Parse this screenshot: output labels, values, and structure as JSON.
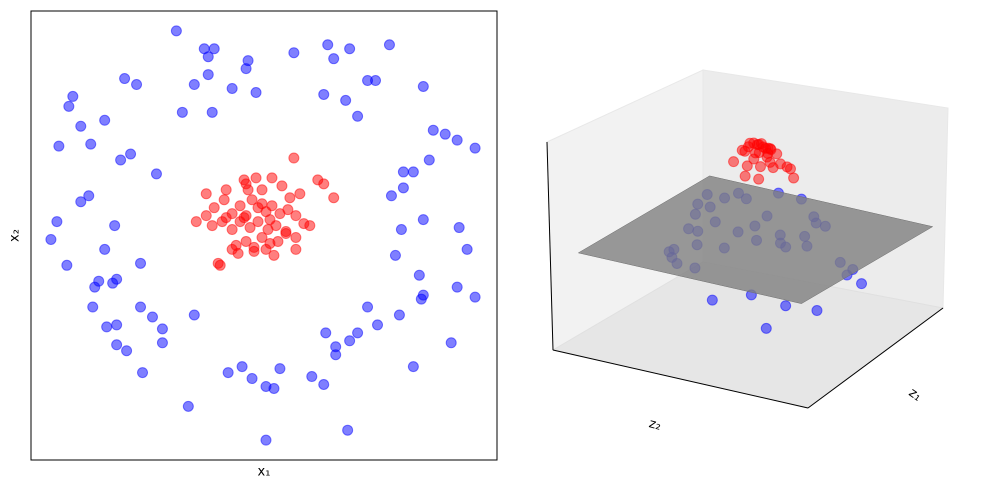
{
  "chart_data": [
    {
      "type": "scatter",
      "x_label": "x₁",
      "y_label": "x₂",
      "xlim": [
        -1.17,
        1.17
      ],
      "ylim": [
        -1.13,
        1.13
      ],
      "alpha": 0.5,
      "series": [
        {
          "color": "#0000ff",
          "x": [
            -0.44,
            -0.3,
            -0.25,
            -0.28,
            -0.08,
            -0.09,
            0.15,
            0.32,
            0.43,
            0.63,
            0.35,
            -0.7,
            -0.64,
            -0.35,
            -0.28,
            -0.16,
            -0.04,
            -0.96,
            -0.98,
            -0.92,
            -0.8,
            -0.41,
            -0.26,
            0.3,
            0.41,
            0.47,
            0.52,
            0.56,
            0.8,
            0.85,
            0.91,
            0.97,
            1.06,
            -1.03,
            -0.87,
            -0.72,
            -0.67,
            -0.54,
            0.83,
            0.7,
            0.75,
            0.7,
            0.64,
            -0.88,
            -0.92,
            -1.04,
            -1.07,
            -0.75,
            -0.8,
            -0.99,
            -0.62,
            0.69,
            0.8,
            0.98,
            1.02,
            0.66,
            0.78,
            -0.83,
            -0.85,
            -0.74,
            -0.76,
            0.97,
            1.06,
            0.8,
            0.79,
            -0.86,
            -0.62,
            -0.56,
            -0.51,
            -0.51,
            -0.79,
            -0.74,
            -0.74,
            -0.69,
            -0.61,
            -0.35,
            0.52,
            0.57,
            0.68,
            0.47,
            0.31,
            0.43,
            0.36,
            0.36,
            -0.18,
            -0.11,
            -0.06,
            0.01,
            0.05,
            0.08,
            0.24,
            0.3,
            0.75,
            0.94,
            -0.38,
            0.01,
            0.42
          ],
          "y": [
            1.03,
            0.94,
            0.94,
            0.9,
            0.88,
            0.84,
            0.92,
            0.96,
            0.94,
            0.96,
            0.89,
            0.79,
            0.76,
            0.76,
            0.81,
            0.74,
            0.72,
            0.7,
            0.65,
            0.55,
            0.58,
            0.62,
            0.62,
            0.71,
            0.68,
            0.6,
            0.78,
            0.78,
            0.75,
            0.53,
            0.51,
            0.48,
            0.44,
            0.45,
            0.46,
            0.38,
            0.41,
            0.31,
            0.38,
            0.32,
            0.32,
            0.24,
            0.2,
            0.2,
            0.17,
            0.07,
            -0.02,
            0.05,
            -0.07,
            -0.15,
            -0.14,
            0.03,
            0.08,
            0.04,
            -0.07,
            -0.1,
            -0.2,
            -0.23,
            -0.26,
            -0.22,
            -0.24,
            -0.26,
            -0.31,
            -0.3,
            -0.32,
            -0.36,
            -0.36,
            -0.41,
            -0.47,
            -0.54,
            -0.46,
            -0.45,
            -0.55,
            -0.58,
            -0.69,
            -0.4,
            -0.36,
            -0.45,
            -0.4,
            -0.49,
            -0.49,
            -0.53,
            -0.56,
            -0.6,
            -0.69,
            -0.66,
            -0.72,
            -0.76,
            -0.77,
            -0.67,
            -0.71,
            -0.75,
            -0.66,
            -0.54,
            -0.86,
            -1.03,
            -0.98
          ]
        },
        {
          "color": "#ff0000",
          "x": [
            0.15,
            0.27,
            0.3,
            0.35,
            -0.29,
            -0.19,
            -0.1,
            -0.09,
            -0.04,
            0.04,
            -0.01,
            0.09,
            0.13,
            0.18,
            -0.34,
            -0.29,
            -0.25,
            -0.2,
            -0.16,
            -0.12,
            -0.09,
            -0.06,
            -0.03,
            0.01,
            0.04,
            0.08,
            0.12,
            0.16,
            0.2,
            0.23,
            -0.26,
            -0.21,
            -0.16,
            -0.12,
            -0.07,
            -0.03,
            0.02,
            0.06,
            0.11,
            0.16,
            -0.14,
            -0.16,
            -0.09,
            -0.05,
            -0.01,
            0.03,
            0.07,
            0.11,
            -0.13,
            -0.05,
            0.01,
            0.05,
            0.16,
            -0.23,
            -0.22,
            -0.19,
            -0.1,
            -0.01,
            -0.08,
            0.03
          ],
          "y": [
            0.39,
            0.28,
            0.26,
            0.19,
            0.21,
            0.23,
            0.28,
            0.26,
            0.29,
            0.29,
            0.23,
            0.25,
            0.19,
            0.21,
            0.07,
            0.1,
            0.14,
            0.18,
            0.11,
            0.15,
            0.1,
            0.18,
            0.14,
            0.12,
            0.15,
            0.11,
            0.13,
            0.1,
            0.06,
            0.05,
            0.05,
            0.07,
            0.03,
            0.07,
            0.04,
            0.07,
            0.03,
            0.05,
            0.01,
            -0.01,
            -0.05,
            -0.07,
            -0.03,
            -0.06,
            -0.01,
            -0.04,
            -0.03,
            0.02,
            -0.09,
            -0.08,
            -0.07,
            -0.1,
            -0.07,
            -0.14,
            -0.15,
            0.09,
            0.09,
            0.16,
            0.23,
            0.08
          ]
        }
      ]
    },
    {
      "type": "scatter3d",
      "x_label": "z₁",
      "y_label": "z₂",
      "xlim": [
        -1.6,
        1.6
      ],
      "ylim": [
        -1.6,
        1.6
      ],
      "zlim": [
        0,
        1.05
      ],
      "alpha": 0.5,
      "surface": {
        "z": 0.5,
        "xlim": [
          -1.4,
          1.4
        ],
        "ylim": [
          -1.4,
          1.4
        ],
        "color": "#808080"
      },
      "series": [
        {
          "color": "#0000ff",
          "x": [
            -0.44,
            0.32,
            0.63,
            -0.7,
            -0.16,
            -0.96,
            -0.41,
            0.47,
            0.8,
            1.06,
            -0.87,
            -0.54,
            0.7,
            0.75,
            0.64,
            -1.04,
            -0.75,
            -0.62,
            0.98,
            0.66,
            -0.85,
            0.97,
            1.06,
            0.79,
            -0.62,
            -0.51,
            -0.74,
            -0.61,
            -0.35,
            0.57,
            0.47,
            0.36,
            -0.11,
            0.01,
            0.24,
            0.75,
            0.94,
            -0.38,
            0.01,
            0.42
          ],
          "y": [
            1.03,
            0.96,
            0.96,
            0.79,
            0.74,
            0.7,
            0.62,
            0.6,
            0.75,
            0.44,
            0.46,
            0.31,
            0.32,
            0.32,
            0.2,
            0.07,
            0.05,
            -0.14,
            0.04,
            -0.1,
            -0.26,
            -0.26,
            -0.31,
            -0.32,
            -0.36,
            -0.54,
            -0.55,
            -0.69,
            -0.4,
            -0.45,
            -0.49,
            -0.6,
            -0.66,
            -0.76,
            -0.71,
            -0.66,
            -0.54,
            -0.86,
            -1.03,
            -0.98
          ],
          "z": [
            0.29,
            0.36,
            0.27,
            0.33,
            0.56,
            0.24,
            0.58,
            0.56,
            0.3,
            0.27,
            0.38,
            0.68,
            0.55,
            0.51,
            0.64,
            0.34,
            0.57,
            0.67,
            0.38,
            0.64,
            0.45,
            0.36,
            0.3,
            0.48,
            0.6,
            0.58,
            0.43,
            0.43,
            0.75,
            0.59,
            0.63,
            0.61,
            0.64,
            0.56,
            0.57,
            0.37,
            0.31,
            0.41,
            0.35,
            0.32
          ]
        },
        {
          "color": "#ff0000",
          "x": [
            0.15,
            0.27,
            0.35,
            -0.29,
            -0.1,
            0.04,
            0.13,
            -0.34,
            -0.2,
            -0.06,
            0.01,
            0.08,
            0.16,
            0.23,
            -0.26,
            -0.12,
            0.02,
            0.11,
            -0.14,
            -0.05,
            0.03,
            -0.13,
            0.05,
            0.16,
            -0.23,
            -0.19,
            -0.01,
            -0.08,
            0.03,
            -0.09
          ],
          "y": [
            0.39,
            0.28,
            0.19,
            0.21,
            0.28,
            0.29,
            0.19,
            0.07,
            0.18,
            0.18,
            0.12,
            0.11,
            0.1,
            0.05,
            0.05,
            0.07,
            0.03,
            0.01,
            -0.05,
            -0.06,
            -0.04,
            -0.09,
            -0.1,
            -0.07,
            -0.14,
            0.09,
            0.16,
            0.23,
            0.08,
            0.1
          ],
          "z": [
            0.84,
            0.86,
            0.85,
            0.88,
            0.92,
            0.92,
            0.95,
            0.89,
            0.93,
            0.96,
            0.99,
            0.98,
            0.96,
            0.95,
            0.93,
            0.98,
            1.0,
            0.99,
            0.98,
            0.99,
            1.0,
            0.98,
            0.99,
            0.97,
            0.93,
            0.96,
            0.97,
            0.94,
            0.99,
            0.98
          ]
        }
      ]
    }
  ]
}
